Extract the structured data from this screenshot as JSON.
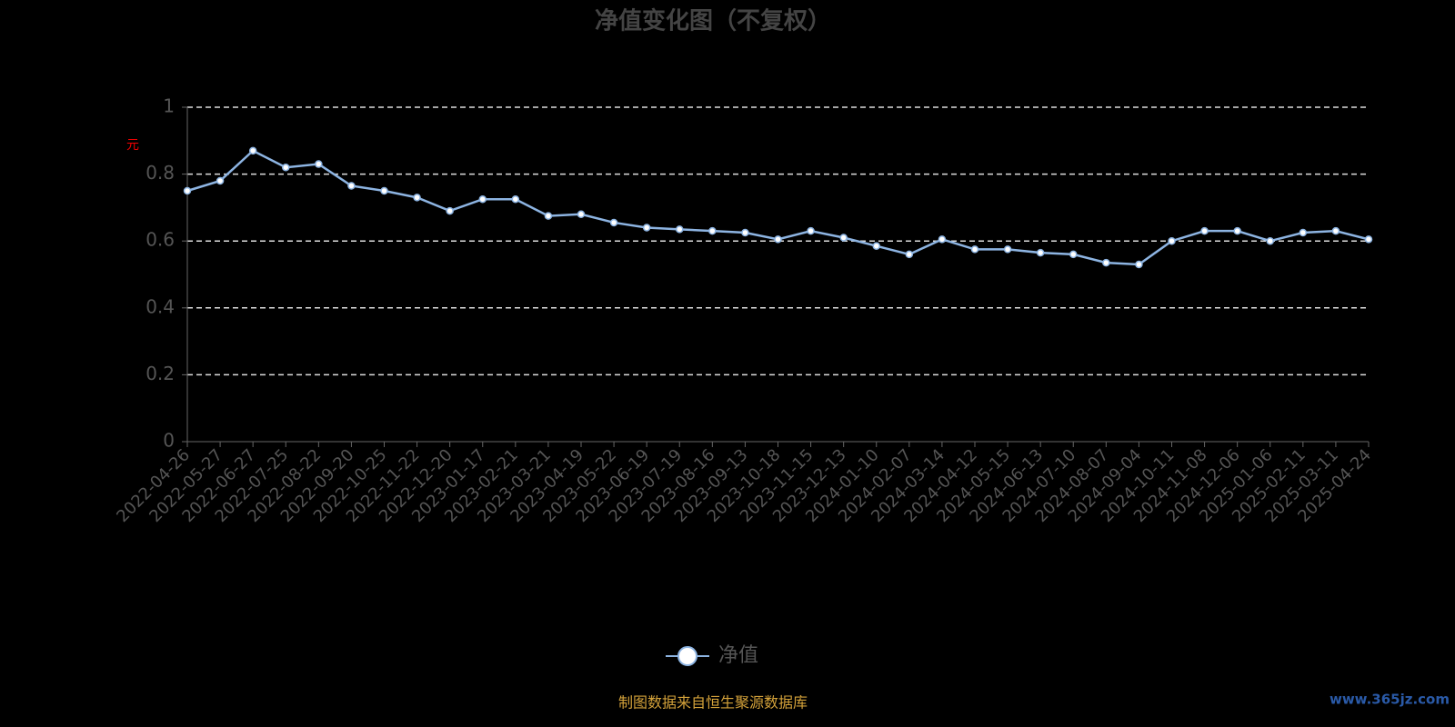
{
  "chart_data": {
    "type": "line",
    "title": "净值变化图（不复权）",
    "y_label": "元",
    "categories": [
      "2022-04-26",
      "2022-05-27",
      "2022-06-27",
      "2022-07-25",
      "2022-08-22",
      "2022-09-20",
      "2022-10-25",
      "2022-11-22",
      "2022-12-20",
      "2023-01-17",
      "2023-02-21",
      "2023-03-21",
      "2023-04-19",
      "2023-05-22",
      "2023-06-19",
      "2023-07-19",
      "2023-08-16",
      "2023-09-13",
      "2023-10-18",
      "2023-11-15",
      "2023-12-13",
      "2024-01-10",
      "2024-02-07",
      "2024-03-14",
      "2024-04-12",
      "2024-05-15",
      "2024-06-13",
      "2024-07-10",
      "2024-08-07",
      "2024-09-04",
      "2024-10-11",
      "2024-11-08",
      "2024-12-06",
      "2025-01-06",
      "2025-02-11",
      "2025-03-11",
      "2025-04-24"
    ],
    "series": [
      {
        "name": "净值",
        "color": "#8db4e2",
        "values": [
          0.75,
          0.78,
          0.87,
          0.82,
          0.83,
          0.765,
          0.75,
          0.73,
          0.69,
          0.725,
          0.725,
          0.675,
          0.68,
          0.655,
          0.64,
          0.635,
          0.63,
          0.625,
          0.605,
          0.63,
          0.61,
          0.585,
          0.56,
          0.605,
          0.575,
          0.575,
          0.565,
          0.56,
          0.535,
          0.53,
          0.6,
          0.63,
          0.63,
          0.6,
          0.625,
          0.63,
          0.605
        ]
      }
    ],
    "ylim": [
      0,
      1
    ],
    "yticks": [
      0,
      0.2,
      0.4,
      0.6,
      0.8,
      1
    ],
    "grid": true,
    "footer": "制图数据来自恒生聚源数据库",
    "watermark": "www.365jz.com"
  }
}
